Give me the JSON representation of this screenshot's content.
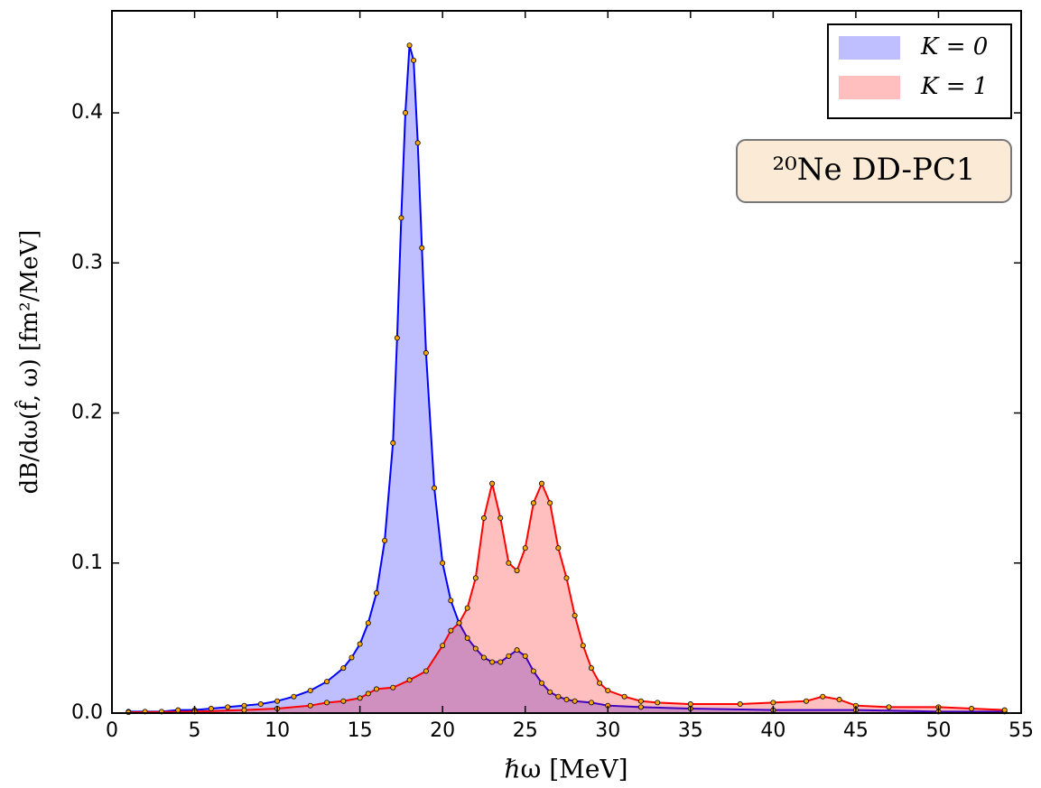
{
  "chart_data": {
    "type": "area",
    "x_label": "ℏω [MeV]",
    "y_label": "dB/dω(f̂, ω) [fm²/MeV]",
    "annotation": "²⁰Ne DD-PC1",
    "xlim": [
      0,
      55
    ],
    "ylim": [
      0,
      0.468
    ],
    "xticks": [
      0,
      5,
      10,
      15,
      20,
      25,
      30,
      35,
      40,
      45,
      50,
      55
    ],
    "yticks": [
      {
        "value": 0,
        "label": "0.0"
      },
      {
        "value": 0.1,
        "label": "0.1"
      },
      {
        "value": 0.2,
        "label": "0.2"
      },
      {
        "value": 0.3,
        "label": "0.3"
      },
      {
        "value": 0.4,
        "label": "0.4"
      }
    ],
    "legend": "upper right",
    "marker_color": "#ffa500",
    "series": [
      {
        "name": "K = 0",
        "color": "#0000ff",
        "x": [
          1,
          2,
          3,
          4,
          5,
          6,
          7,
          8,
          9,
          10,
          11,
          12,
          13,
          14,
          14.5,
          15,
          15.5,
          16,
          16.5,
          17,
          17.25,
          17.5,
          17.75,
          18,
          18.25,
          18.5,
          18.75,
          19,
          19.5,
          20,
          20.5,
          21,
          21.5,
          22,
          22.5,
          23,
          23.5,
          24,
          24.5,
          25,
          25.5,
          26,
          26.5,
          27,
          27.5,
          28,
          29,
          30,
          32,
          35,
          40,
          45,
          50,
          54
        ],
        "values": [
          0.001,
          0.001,
          0.001,
          0.002,
          0.002,
          0.003,
          0.004,
          0.005,
          0.006,
          0.008,
          0.011,
          0.015,
          0.021,
          0.03,
          0.037,
          0.046,
          0.06,
          0.08,
          0.115,
          0.18,
          0.25,
          0.33,
          0.4,
          0.445,
          0.435,
          0.38,
          0.31,
          0.24,
          0.15,
          0.1,
          0.075,
          0.06,
          0.05,
          0.043,
          0.037,
          0.034,
          0.034,
          0.038,
          0.042,
          0.038,
          0.028,
          0.02,
          0.014,
          0.011,
          0.009,
          0.008,
          0.007,
          0.005,
          0.004,
          0.003,
          0.002,
          0.002,
          0.001,
          0.001
        ]
      },
      {
        "name": "K = 1",
        "color": "#ff0000",
        "x": [
          1,
          5,
          8,
          10,
          12,
          13,
          14,
          15,
          15.5,
          16,
          17,
          18,
          19,
          20,
          20.5,
          21,
          21.5,
          22,
          22.5,
          23,
          23.5,
          24,
          24.5,
          25,
          25.5,
          26,
          26.5,
          27,
          27.5,
          28,
          28.5,
          29,
          29.5,
          30,
          31,
          32,
          33,
          35,
          38,
          40,
          42,
          43,
          44,
          45,
          47,
          50,
          52,
          54
        ],
        "values": [
          0.0005,
          0.001,
          0.002,
          0.003,
          0.005,
          0.007,
          0.008,
          0.01,
          0.013,
          0.016,
          0.017,
          0.022,
          0.028,
          0.045,
          0.055,
          0.06,
          0.07,
          0.09,
          0.13,
          0.153,
          0.13,
          0.1,
          0.095,
          0.11,
          0.14,
          0.153,
          0.14,
          0.11,
          0.09,
          0.065,
          0.045,
          0.03,
          0.02,
          0.015,
          0.011,
          0.008,
          0.007,
          0.006,
          0.006,
          0.007,
          0.008,
          0.011,
          0.009,
          0.005,
          0.004,
          0.004,
          0.003,
          0.002
        ]
      }
    ]
  }
}
